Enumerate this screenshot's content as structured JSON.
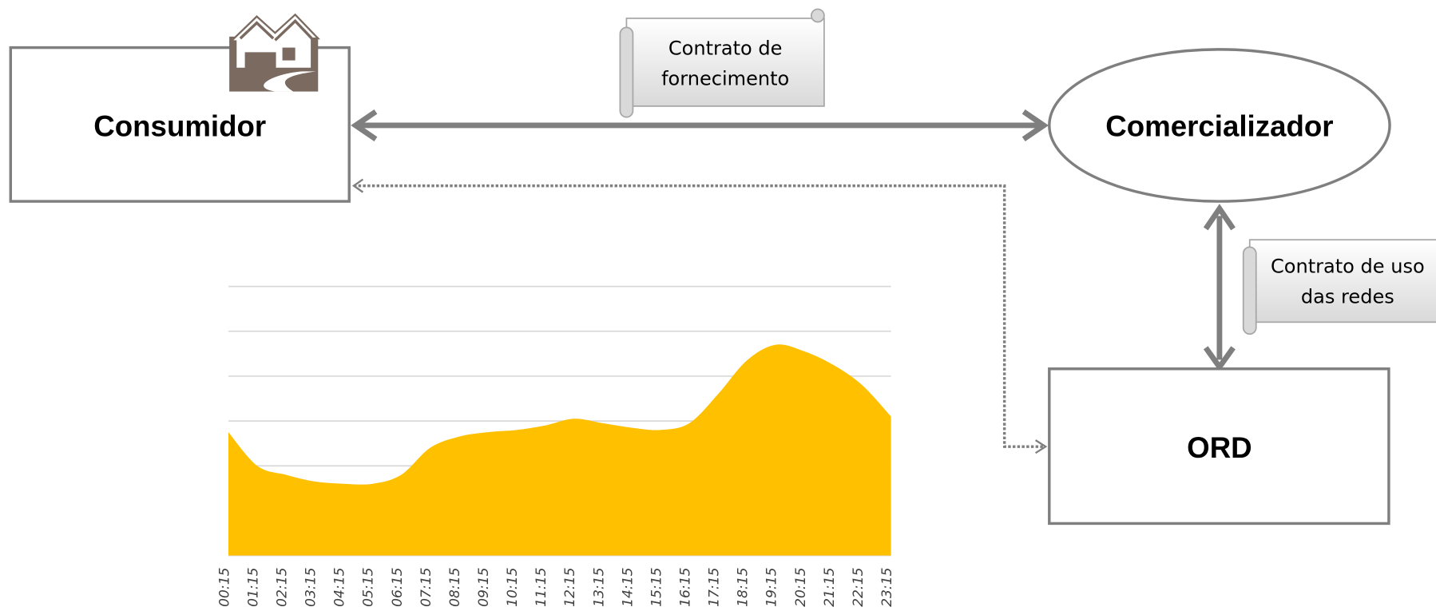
{
  "nodes": [
    {
      "label": "Consumidor"
    },
    {
      "label": "Comercializador"
    },
    {
      "label": "ORD"
    }
  ],
  "scrolls": [
    {
      "lines": [
        "Contrato de",
        "fornecimento"
      ]
    },
    {
      "lines": [
        "Contrato de uso",
        "das redes"
      ]
    }
  ],
  "chart_data": {
    "type": "area",
    "categories": [
      "00:15",
      "01:15",
      "02:15",
      "03:15",
      "04:15",
      "05:15",
      "06:15",
      "07:15",
      "08:15",
      "09:15",
      "10:15",
      "11:15",
      "12:15",
      "13:15",
      "14:15",
      "15:15",
      "16:15",
      "17:15",
      "18:15",
      "19:15",
      "20:15",
      "21:15",
      "22:15",
      "23:15"
    ],
    "values": [
      2.75,
      2.0,
      1.8,
      1.65,
      1.6,
      1.6,
      1.8,
      2.4,
      2.65,
      2.75,
      2.8,
      2.9,
      3.05,
      2.95,
      2.85,
      2.8,
      2.95,
      3.6,
      4.35,
      4.7,
      4.55,
      4.25,
      3.8,
      3.1
    ],
    "color": "#ffc000",
    "ylim": [
      0,
      6
    ],
    "yticks": [
      0,
      1,
      2,
      3,
      4,
      5,
      6
    ],
    "grid": true
  }
}
